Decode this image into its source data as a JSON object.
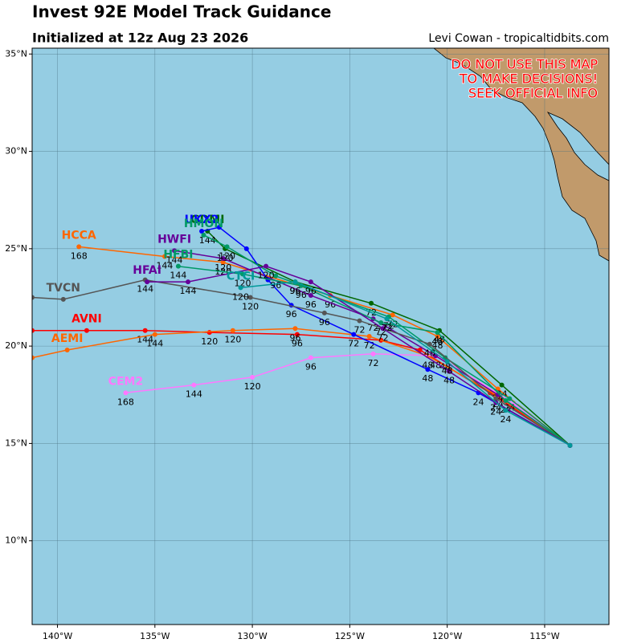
{
  "header": {
    "title": "Invest 92E Model Track Guidance",
    "subtitle": "Initialized at 12z Aug 23 2026",
    "credit": "Levi Cowan - tropicaltidbits.com",
    "warning": [
      "DO NOT USE THIS MAP",
      "TO MAKE DECISIONS!",
      "SEEK OFFICIAL INFO"
    ]
  },
  "map": {
    "xlim": [
      -141.3,
      -111.7
    ],
    "ylim": [
      5.7,
      35.3
    ],
    "xticks": [
      {
        "value": -140,
        "label": "140°W"
      },
      {
        "value": -135,
        "label": "135°W"
      },
      {
        "value": -130,
        "label": "130°W"
      },
      {
        "value": -125,
        "label": "125°W"
      },
      {
        "value": -120,
        "label": "120°W"
      },
      {
        "value": -115,
        "label": "115°W"
      }
    ],
    "yticks": [
      {
        "value": 10,
        "label": "10°N"
      },
      {
        "value": 15,
        "label": "15°N"
      },
      {
        "value": 20,
        "label": "20°N"
      },
      {
        "value": 25,
        "label": "25°N"
      },
      {
        "value": 30,
        "label": "30°N"
      },
      {
        "value": 35,
        "label": "35°N"
      }
    ]
  },
  "tracks": [
    {
      "name": "AVNI",
      "color": "#ff0000",
      "lon": [
        -113.7,
        -117.8,
        -121.4,
        -123.4,
        -127.7,
        -132.2,
        -135.5,
        -138.5,
        -141.3
      ],
      "lat": [
        14.9,
        17.6,
        19.8,
        20.3,
        20.6,
        20.7,
        20.8,
        20.8,
        20.8
      ],
      "hours": [
        null,
        null,
        null,
        null,
        96,
        120,
        144,
        null,
        null
      ]
    },
    {
      "name": "AEMI",
      "color": "#ff6600",
      "lon": [
        -113.7,
        -117.5,
        -121.0,
        -124.0,
        -127.8,
        -131.0,
        -135.0,
        -139.5,
        -141.3
      ],
      "lat": [
        14.9,
        17.5,
        19.5,
        20.5,
        20.9,
        20.8,
        20.6,
        19.8,
        19.4
      ],
      "hours": [
        null,
        null,
        48,
        72,
        96,
        120,
        144,
        null,
        null
      ]
    },
    {
      "name": "HCCA",
      "color": "#ff6600",
      "lon": [
        -113.7,
        -117.4,
        -120.5,
        -122.8,
        -126.0,
        -131.5,
        -134.5,
        -138.9
      ],
      "lat": [
        14.9,
        17.8,
        20.5,
        21.6,
        22.6,
        24.3,
        24.6,
        25.1
      ],
      "hours": [
        null,
        24,
        48,
        72,
        96,
        120,
        144,
        168
      ]
    },
    {
      "name": "CEM2",
      "color": "#ff77ff",
      "lon": [
        -113.7,
        -116.5,
        -120.5,
        -123.8,
        -127.0,
        -130.0,
        -133.0,
        -136.5
      ],
      "lat": [
        14.9,
        17.0,
        19.5,
        19.6,
        19.4,
        18.4,
        18.0,
        17.6
      ],
      "hours": [
        null,
        null,
        null,
        72,
        96,
        120,
        144,
        168
      ]
    },
    {
      "name": "GDMI",
      "color": "#006600",
      "lon": [
        -113.7,
        -117.2,
        -120.4,
        -123.9,
        -127.8,
        -131.4,
        -132.3
      ],
      "lat": [
        14.9,
        18.0,
        20.8,
        22.2,
        23.3,
        25.0,
        25.9
      ],
      "hours": [
        null,
        24,
        48,
        72,
        96,
        120,
        144
      ]
    },
    {
      "name": "HWFI",
      "color": "#660099",
      "lon": [
        -113.7,
        -117.4,
        -120.6,
        -123.8,
        -127.0,
        -131.5,
        -134.0
      ],
      "lat": [
        14.9,
        17.5,
        19.5,
        21.4,
        22.6,
        24.5,
        24.9
      ],
      "hours": [
        null,
        24,
        48,
        72,
        96,
        120,
        144
      ]
    },
    {
      "name": "UKX2",
      "color": "#0000ff",
      "lon": [
        -113.7,
        -118.4,
        -121.0,
        -124.8,
        -128.0,
        -129.2,
        -130.3,
        -131.7,
        -132.6
      ],
      "lat": [
        14.9,
        17.6,
        18.8,
        20.6,
        22.1,
        23.4,
        25.0,
        26.1,
        25.9
      ],
      "hours": [
        null,
        24,
        48,
        72,
        96,
        null,
        null,
        null,
        null
      ]
    },
    {
      "name": "HMON",
      "color": "#009966",
      "lon": [
        -113.7,
        -116.8,
        -120.1,
        -123.0,
        -128.8,
        -131.3,
        -132.5
      ],
      "lat": [
        14.9,
        17.3,
        19.4,
        21.5,
        23.6,
        25.1,
        25.7
      ],
      "hours": [
        null,
        24,
        48,
        72,
        96,
        120,
        null
      ]
    },
    {
      "name": "HFBI",
      "color": "#009966",
      "lon": [
        -113.7,
        -117.0,
        -120.5,
        -123.4,
        -127.5,
        -130.5,
        -133.8
      ],
      "lat": [
        14.9,
        17.2,
        20.7,
        21.2,
        23.1,
        23.7,
        24.1
      ],
      "hours": [
        null,
        24,
        48,
        72,
        96,
        120,
        144
      ]
    },
    {
      "name": "TVCN",
      "color": "#555555",
      "lon": [
        -113.7,
        -117.5,
        -120.9,
        -124.5,
        -126.3,
        -130.1,
        -135.5,
        -139.7,
        -141.3
      ],
      "lat": [
        14.9,
        17.3,
        20.1,
        21.3,
        21.7,
        22.5,
        23.4,
        22.4,
        22.5
      ],
      "hours": [
        null,
        24,
        48,
        72,
        96,
        120,
        144,
        null,
        null
      ]
    },
    {
      "name": "HFAI",
      "color": "#660099",
      "lon": [
        -113.7,
        -117.5,
        -119.9,
        -123.3,
        -127.0,
        -129.3,
        -133.3,
        -135.4
      ],
      "lat": [
        14.9,
        17.1,
        18.7,
        20.9,
        23.3,
        24.1,
        23.3,
        23.3
      ],
      "hours": [
        null,
        24,
        48,
        72,
        96,
        120,
        144,
        null
      ]
    },
    {
      "name": "CTCI",
      "color": "#009999",
      "lon": [
        -113.7,
        -117.0,
        -120.0,
        -123.1,
        -127.8,
        -130.6
      ],
      "lat": [
        14.9,
        16.7,
        19.2,
        21.4,
        23.3,
        23.0
      ],
      "hours": [
        null,
        24,
        48,
        72,
        96,
        120
      ]
    }
  ]
}
